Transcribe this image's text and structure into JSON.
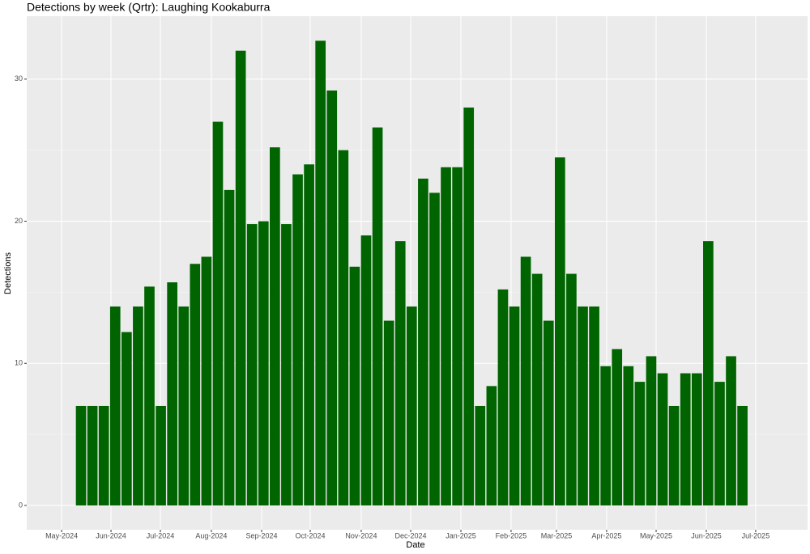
{
  "chart_data": {
    "type": "bar",
    "title": "Detections by week (Qrtr): Laughing Kookaburra",
    "x_label": "Date",
    "y_label": "Detections",
    "categories": [
      null,
      null,
      null,
      null,
      null,
      null,
      null,
      null,
      null,
      null,
      null,
      null,
      null,
      null,
      null,
      null,
      null,
      null,
      null,
      null,
      null,
      null,
      null,
      null,
      null,
      null,
      null,
      null,
      null,
      null,
      null,
      null,
      null,
      null,
      null,
      null,
      null,
      null,
      null,
      null,
      null,
      null,
      null,
      null,
      null,
      null,
      null,
      null,
      null,
      null,
      null,
      null,
      null,
      null,
      null,
      null,
      null,
      null,
      null
    ],
    "values": [
      7,
      7,
      7,
      14,
      12.2,
      14,
      15.4,
      7,
      15.7,
      14,
      17,
      17.5,
      27,
      22.2,
      32,
      19.8,
      20,
      25.2,
      19.8,
      23.3,
      24,
      32.7,
      29.2,
      25,
      16.8,
      19,
      26.6,
      13,
      18.6,
      14,
      23,
      22,
      23.8,
      23.8,
      28,
      7,
      8.4,
      15.2,
      14,
      17.5,
      16.3,
      13,
      24.5,
      16.3,
      14,
      14,
      9.8,
      11,
      9.8,
      8.7,
      10.5,
      9.3,
      7,
      9.3,
      9.3,
      18.6,
      8.7,
      10.5,
      7
    ],
    "color": "#006400",
    "xlim": [
      -4.76,
      63.71
    ],
    "xticks": [
      {
        "value": -1.7,
        "label": "May-2024"
      },
      {
        "value": 2.63,
        "label": "Jun-2024"
      },
      {
        "value": 6.96,
        "label": "Jul-2024"
      },
      {
        "value": 11.43,
        "label": "Aug-2024"
      },
      {
        "value": 15.84,
        "label": "Sep-2024"
      },
      {
        "value": 20.1,
        "label": "Oct-2024"
      },
      {
        "value": 24.57,
        "label": "Nov-2024"
      },
      {
        "value": 28.91,
        "label": "Dec-2024"
      },
      {
        "value": 33.31,
        "label": "Jan-2025"
      },
      {
        "value": 37.71,
        "label": "Feb-2025"
      },
      {
        "value": 41.69,
        "label": "Mar-2025"
      },
      {
        "value": 46.09,
        "label": "Apr-2025"
      },
      {
        "value": 50.43,
        "label": "May-2025"
      },
      {
        "value": 54.83,
        "label": "Jun-2025"
      },
      {
        "value": 59.16,
        "label": "Jul-2025"
      }
    ],
    "ylim": [
      -1.71,
      34.43
    ],
    "yticks": [
      0,
      10,
      20,
      30
    ],
    "minor_yticks": [
      5,
      15,
      25
    ],
    "grid": true
  }
}
